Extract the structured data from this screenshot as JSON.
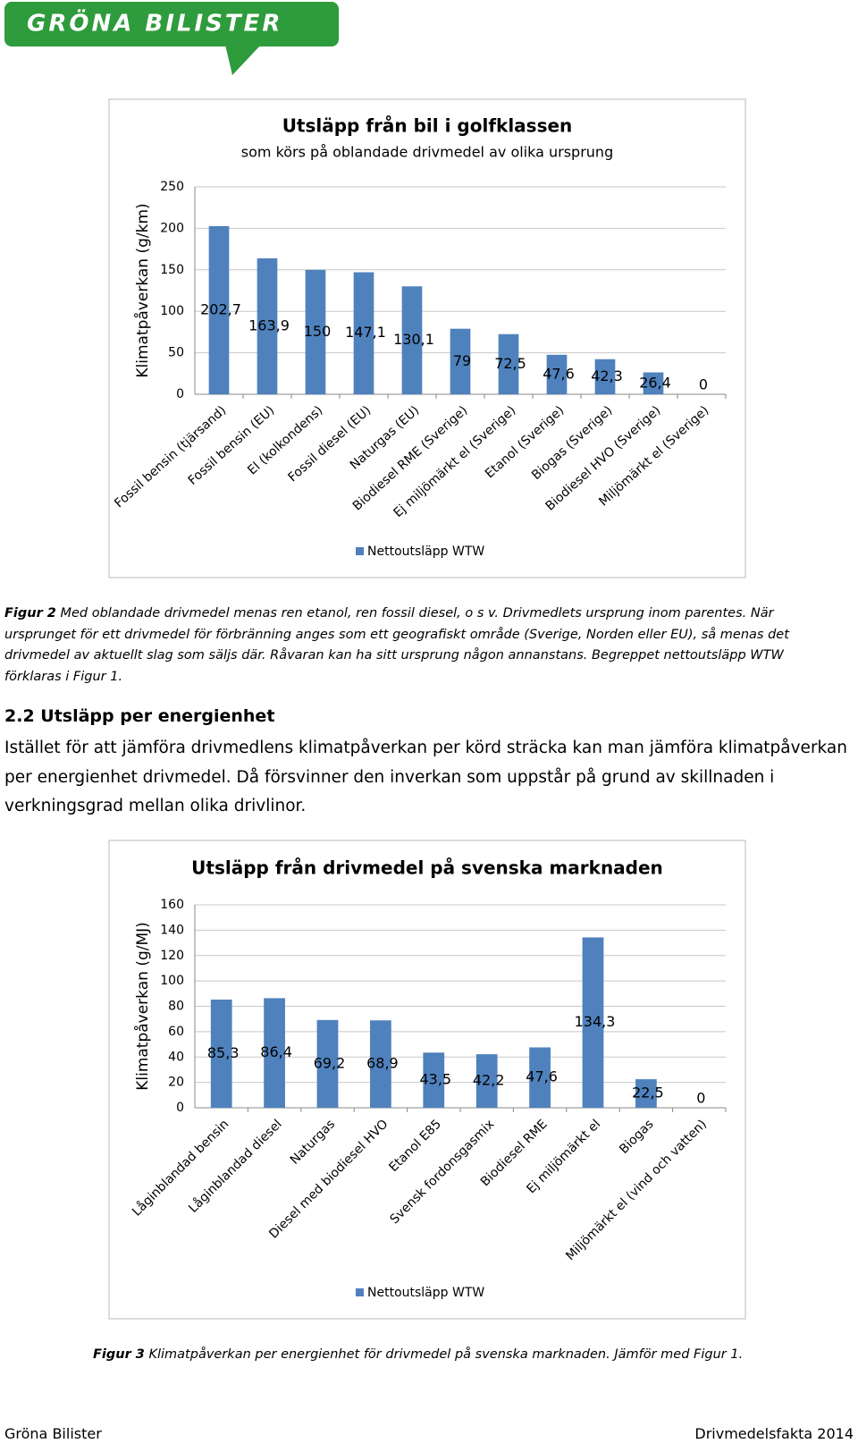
{
  "header": {
    "logo": "GRÖNA BILISTER"
  },
  "chart_data": [
    {
      "type": "bar",
      "title": "Utsläpp från bil i golfklassen",
      "subtitle": "som körs på oblandade drivmedel av olika ursprung",
      "y_label": "Klimatpåverkan (g/km)",
      "categories": [
        "Fossil bensin (tjärsand)",
        "Fossil bensin (EU)",
        "El (kolkondens)",
        "Fossil diesel (EU)",
        "Naturgas (EU)",
        "Biodiesel RME (Sverige)",
        "Ej miljömärkt el (Sverige)",
        "Etanol (Sverige)",
        "Biogas (Sverige)",
        "Biodiesel HVO (Sverige)",
        "Miljömärkt el (Sverige)"
      ],
      "series": [
        {
          "name": "Nettoutsläpp WTW",
          "color": "#4f81bd",
          "values": [
            202.7,
            163.9,
            150,
            147.1,
            130.1,
            79,
            72.5,
            47.6,
            42.3,
            26.4,
            0
          ],
          "value_labels": [
            "202,7",
            "163,9",
            "150",
            "147,1",
            "130,1",
            "79",
            "72,5",
            "47,6",
            "42,3",
            "26,4",
            "0"
          ]
        }
      ],
      "ylim": [
        0,
        250
      ],
      "yticks": [
        0,
        50,
        100,
        150,
        200,
        250
      ],
      "grid": true,
      "legend": "bottom"
    },
    {
      "type": "bar",
      "title": "Utsläpp från drivmedel på svenska marknaden",
      "y_label": "Klimatpåverkan (g/MJ)",
      "categories": [
        "Låginblandad bensin",
        "Låginblandad diesel",
        "Naturgas",
        "Diesel med biodiesel HVO",
        "Etanol E85",
        "Svensk fordonsgasmix",
        "Biodiesel RME",
        "Ej miljömärkt el",
        "Biogas",
        "Miljömärkt el (vind och vatten)"
      ],
      "series": [
        {
          "name": "Nettoutsläpp WTW",
          "color": "#4f81bd",
          "values": [
            85.3,
            86.4,
            69.2,
            68.9,
            43.5,
            42.2,
            47.6,
            134.3,
            22.5,
            0
          ],
          "value_labels": [
            "85,3",
            "86,4",
            "69,2",
            "68,9",
            "43,5",
            "42,2",
            "47,6",
            "134,3",
            "22,5",
            "0"
          ]
        }
      ],
      "ylim": [
        0,
        160
      ],
      "yticks": [
        0,
        20,
        40,
        60,
        80,
        100,
        120,
        140,
        160
      ],
      "grid": true,
      "legend": "bottom"
    }
  ],
  "figure2_caption": {
    "label": "Figur 2",
    "text": "Med oblandade drivmedel menas ren etanol, ren fossil diesel, o s v. Drivmedlets ursprung inom parentes. När ursprunget för ett drivmedel för förbränning anges som ett geografiskt område (Sverige, Norden eller EU), så menas det drivmedel av aktuellt slag som säljs där. Råvaran kan ha sitt ursprung någon annanstans. Begreppet nettoutsläpp WTW förklaras i Figur 1."
  },
  "section": {
    "heading": "2.2 Utsläpp per energienhet",
    "body": "Istället för att jämföra drivmedlens klimatpåverkan per körd sträcka kan man jämföra klimatpåverkan per energienhet drivmedel. Då försvinner den inverkan som uppstår på grund av skillnaden i verkningsgrad mellan olika drivlinor."
  },
  "figure3_caption": {
    "label": "Figur 3",
    "text": "Klimatpåverkan per energienhet för drivmedel på svenska marknaden. Jämför med Figur 1."
  },
  "footer": {
    "left": "Gröna Bilister",
    "right": "Drivmedelsfakta 2014"
  }
}
